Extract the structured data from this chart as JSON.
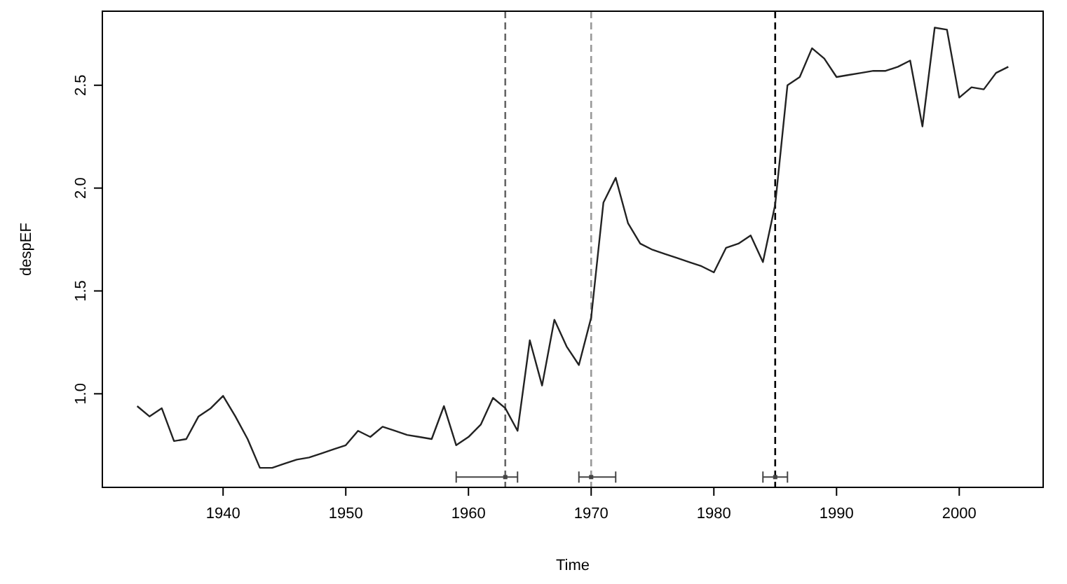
{
  "chart_data": {
    "type": "line",
    "xlabel": "Time",
    "ylabel": "despEF",
    "xlim": [
      1930.16,
      2006.84
    ],
    "ylim": [
      0.545,
      2.86
    ],
    "xticks": [
      1940,
      1950,
      1960,
      1970,
      1980,
      1990,
      2000
    ],
    "yticks": [
      {
        "value": 1,
        "label": "1.0"
      },
      {
        "value": 1.5,
        "label": "1.5"
      },
      {
        "value": 2,
        "label": "2.0"
      },
      {
        "value": 2.5,
        "label": "2.5"
      }
    ],
    "series": [
      {
        "color": "#222222",
        "x": [
          1933,
          1934,
          1935,
          1936,
          1937,
          1938,
          1939,
          1940,
          1941,
          1942,
          1943,
          1944,
          1945,
          1946,
          1947,
          1948,
          1949,
          1950,
          1951,
          1952,
          1953,
          1954,
          1955,
          1956,
          1957,
          1958,
          1959,
          1960,
          1961,
          1962,
          1963,
          1964,
          1965,
          1966,
          1967,
          1968,
          1969,
          1970,
          1971,
          1972,
          1973,
          1974,
          1975,
          1976,
          1977,
          1978,
          1979,
          1980,
          1981,
          1982,
          1983,
          1984,
          1985,
          1986,
          1987,
          1988,
          1989,
          1990,
          1991,
          1992,
          1993,
          1994,
          1995,
          1996,
          1997,
          1998,
          1999,
          2000,
          2001,
          2002,
          2003,
          2004
        ],
        "values": [
          0.94,
          0.89,
          0.93,
          0.77,
          0.78,
          0.89,
          0.93,
          0.99,
          0.89,
          0.78,
          0.64,
          0.64,
          0.66,
          0.68,
          0.69,
          0.71,
          0.73,
          0.75,
          0.82,
          0.79,
          0.84,
          0.82,
          0.8,
          0.79,
          0.78,
          0.94,
          0.75,
          0.79,
          0.85,
          0.98,
          0.93,
          0.82,
          1.26,
          1.04,
          1.36,
          1.23,
          1.14,
          1.37,
          1.93,
          2.05,
          1.83,
          1.73,
          1.7,
          1.68,
          1.66,
          1.64,
          1.62,
          1.59,
          1.71,
          1.73,
          1.77,
          1.64,
          1.92,
          2.5,
          2.54,
          2.68,
          2.63,
          2.54,
          2.55,
          2.56,
          2.57,
          2.57,
          2.59,
          2.62,
          2.3,
          2.78,
          2.77,
          2.44,
          2.49,
          2.48,
          2.56,
          2.59
        ],
        "line_style": "solid"
      },
      {
        "type": "scatter",
        "marker": "square",
        "color": "#444444",
        "x": [
          1963,
          1970,
          1985
        ],
        "values": [
          0.595,
          0.595,
          0.595
        ],
        "xerrors": [
          [
            1959,
            1964
          ],
          [
            1969,
            1972
          ],
          [
            1984,
            1986
          ]
        ]
      }
    ],
    "ref_lines": [
      {
        "axis": "x",
        "value": 1963,
        "color": "#666666",
        "line_style": "dashed"
      },
      {
        "axis": "x",
        "value": 1970,
        "color": "#999999",
        "line_style": "dashed"
      },
      {
        "axis": "x",
        "value": 1985,
        "color": "#000000",
        "line_style": "dashed"
      }
    ]
  }
}
